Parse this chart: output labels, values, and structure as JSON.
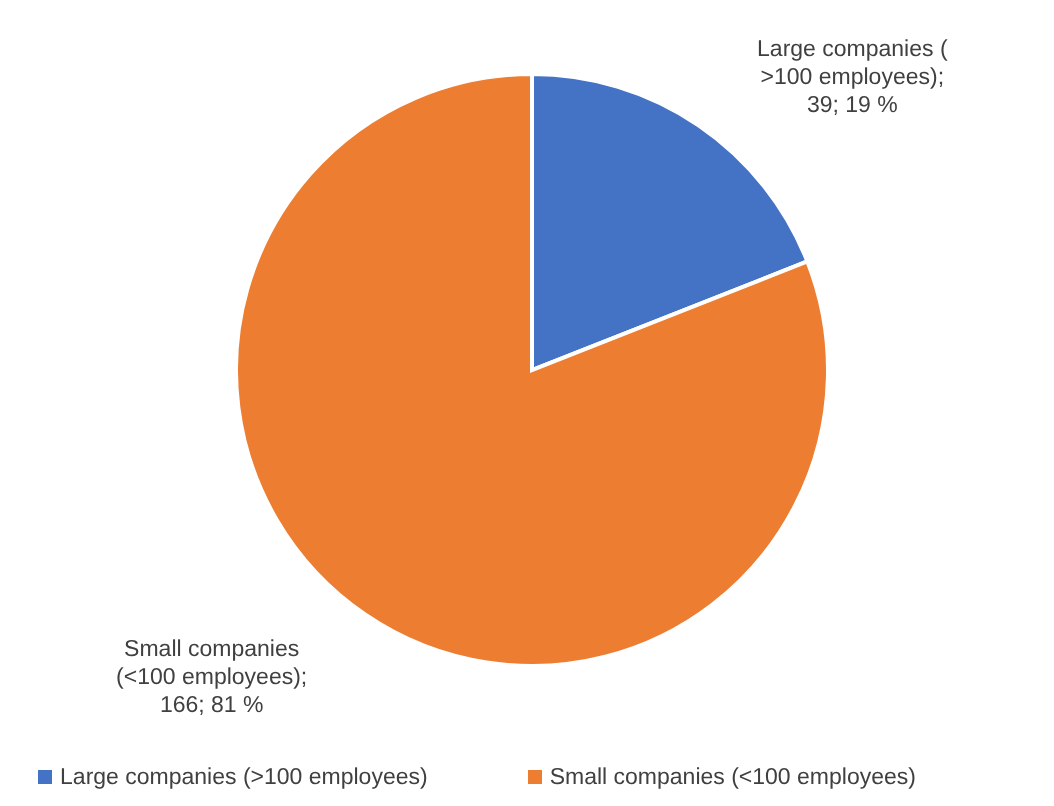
{
  "chart_data": {
    "type": "pie",
    "categories": [
      "Large companies (>100 employees)",
      "Small companies (<100 employees)"
    ],
    "values": [
      39,
      166
    ],
    "colors": [
      "#4472c4",
      "#ed7d31"
    ],
    "value_labels": [
      "Large companies (\n>100 employees);\n39; 19 %",
      "Small companies\n(<100 employees);\n166; 81 %"
    ],
    "legend": "bottom"
  }
}
